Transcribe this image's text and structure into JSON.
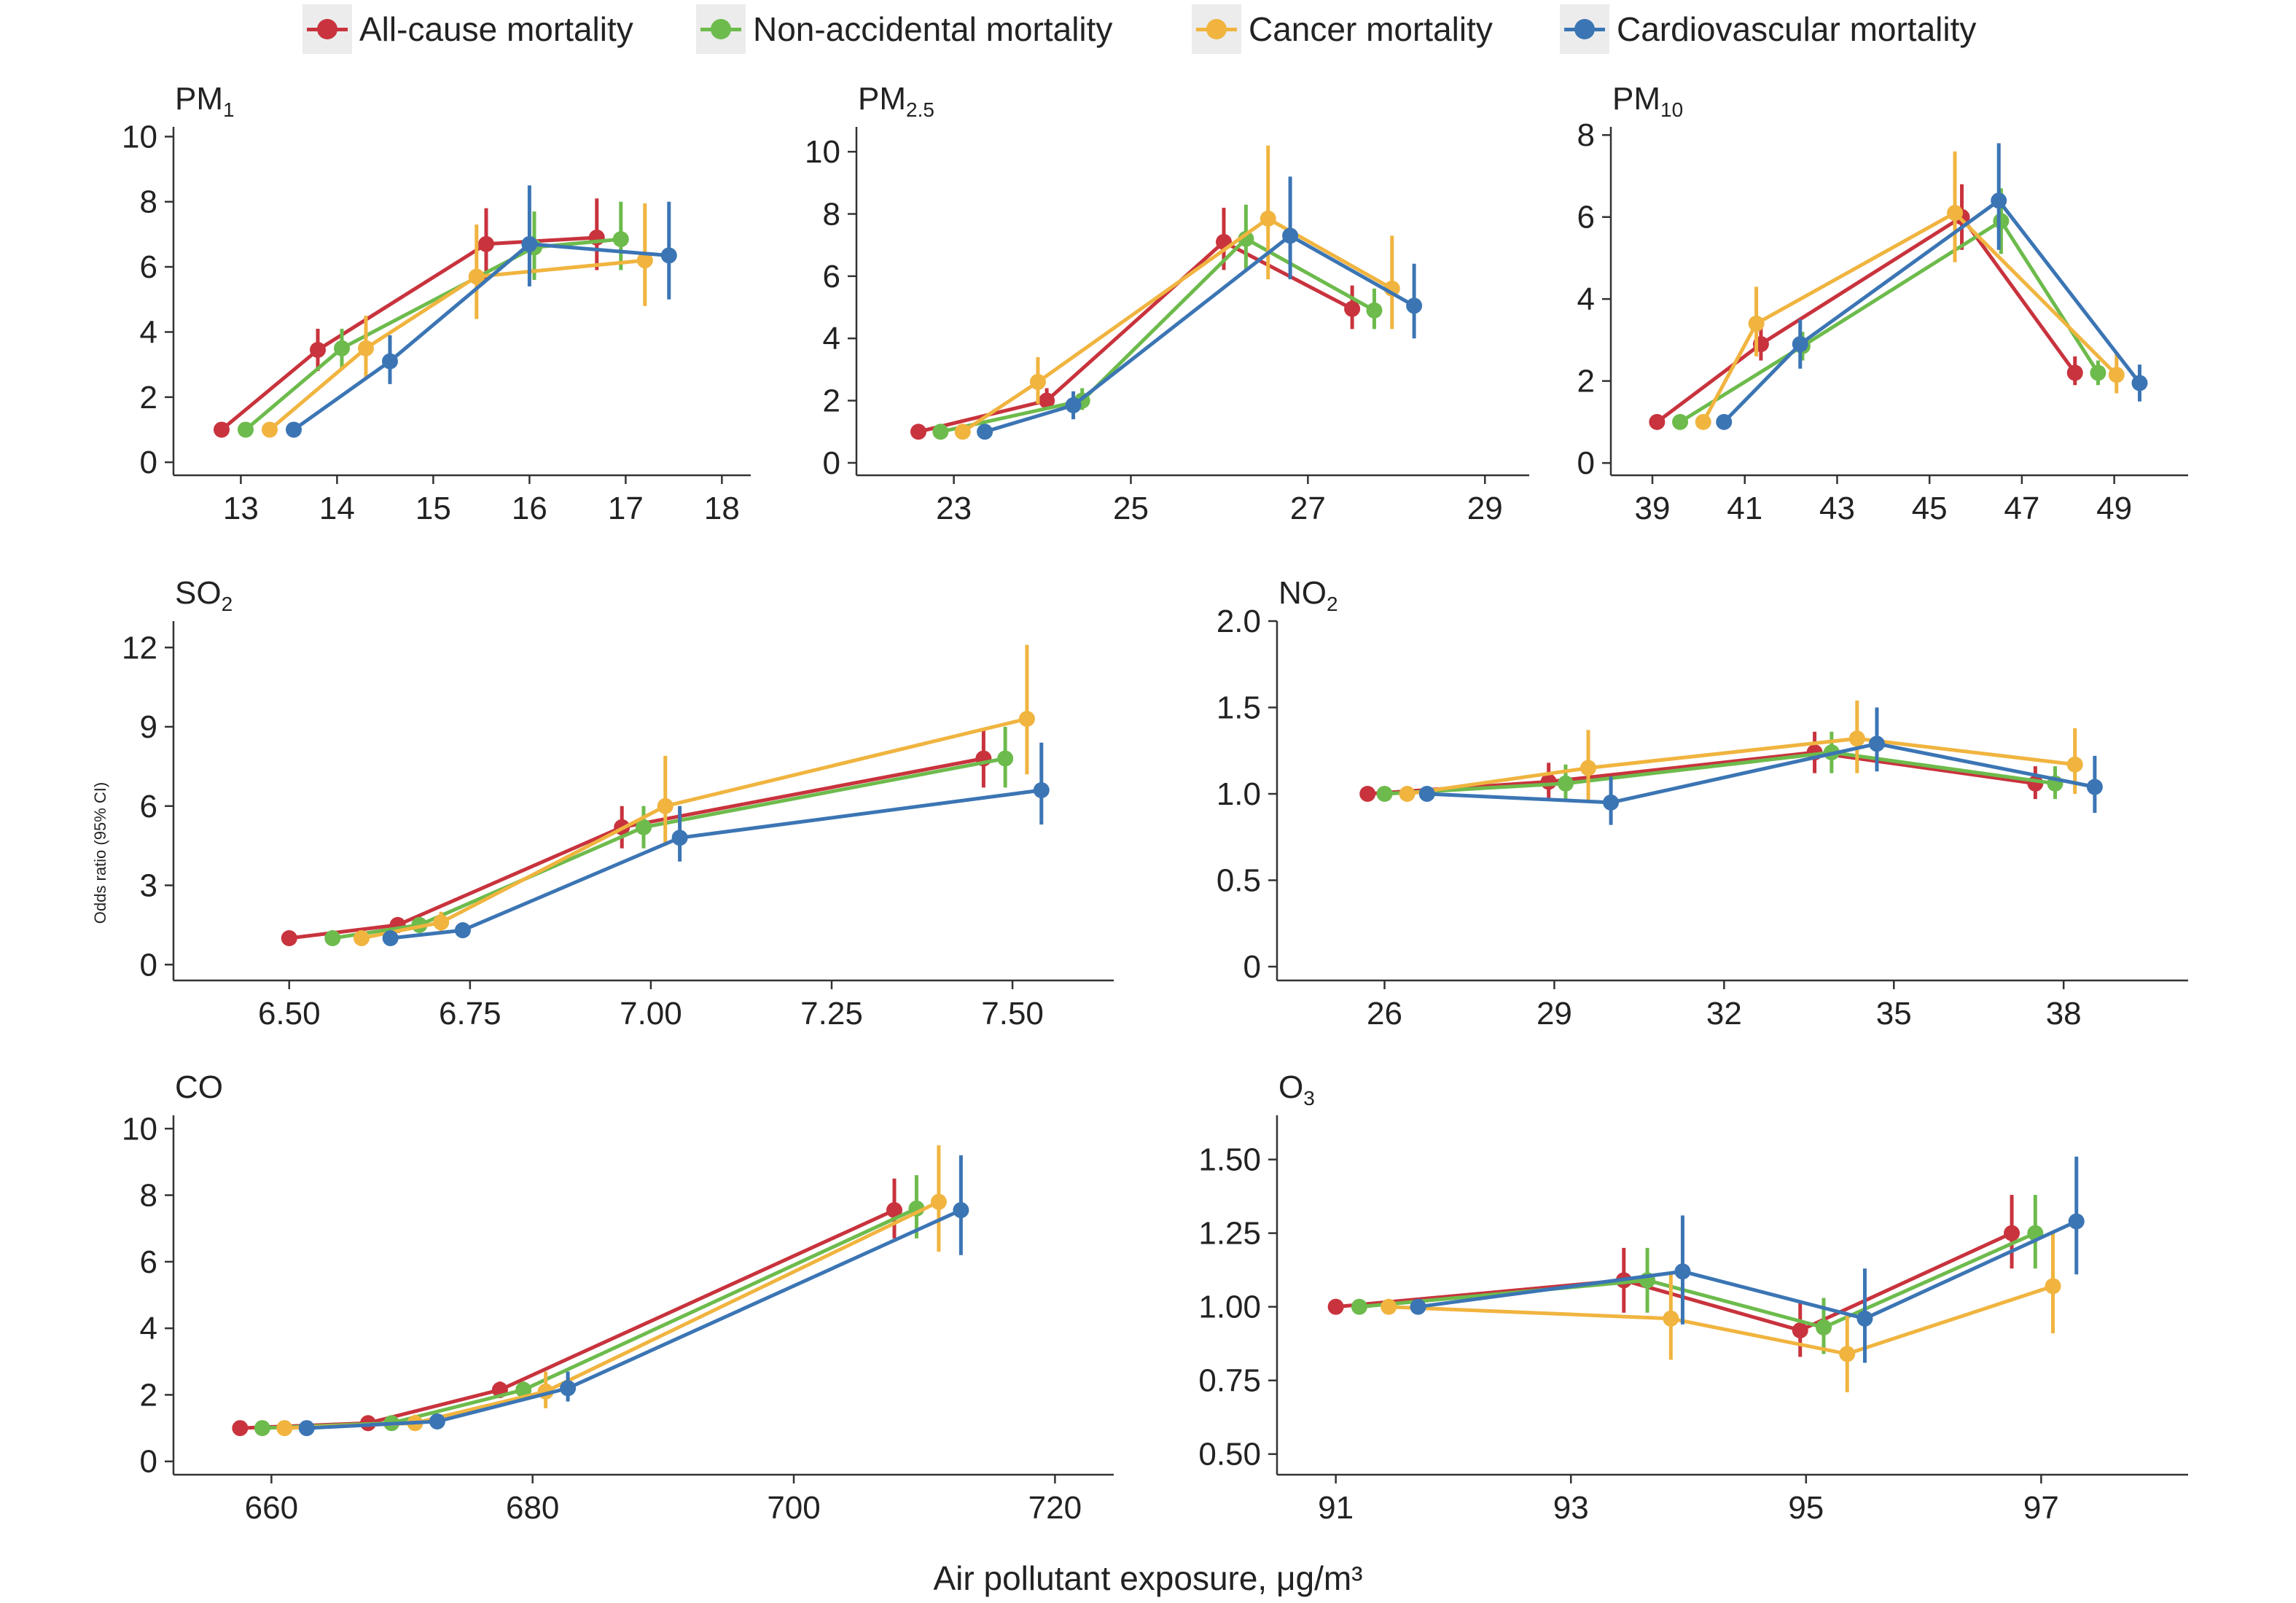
{
  "legend": [
    {
      "label": "All-cause mortality",
      "color": "#c8333d"
    },
    {
      "label": "Non-accidental mortality",
      "color": "#6dbb4c"
    },
    {
      "label": "Cancer mortality",
      "color": "#f0b43f"
    },
    {
      "label": "Cardiovascular mortality",
      "color": "#3b75b4"
    }
  ],
  "xlabel": "Air pollutant exposure, μg/m³",
  "ylabel": "Odds ratio (95% CI)",
  "chart_data": [
    {
      "type": "line",
      "title_main": "PM",
      "title_sub": "1",
      "xlim": [
        12.3,
        18.3
      ],
      "ylim": [
        -0.4,
        10.3
      ],
      "xticks": [
        13,
        14,
        15,
        16,
        17,
        18
      ],
      "xtick_labels": [
        "13",
        "14",
        "15",
        "16",
        "17",
        "18"
      ],
      "yticks": [
        0,
        2,
        4,
        6,
        8,
        10
      ],
      "ytick_labels": [
        "0",
        "2",
        "4",
        "6",
        "8",
        "10"
      ],
      "series": [
        {
          "name": "All-cause mortality",
          "x": [
            12.8,
            13.8,
            15.55,
            16.7
          ],
          "y": [
            1.0,
            3.45,
            6.7,
            6.9
          ],
          "lo": [
            1.0,
            2.8,
            5.6,
            5.9
          ],
          "hi": [
            1.0,
            4.1,
            7.8,
            8.1
          ]
        },
        {
          "name": "Non-accidental mortality",
          "x": [
            13.05,
            14.05,
            16.05,
            16.95
          ],
          "y": [
            1.0,
            3.5,
            6.6,
            6.85
          ],
          "lo": [
            1.0,
            2.9,
            5.6,
            5.9
          ],
          "hi": [
            1.0,
            4.1,
            7.7,
            8.0
          ]
        },
        {
          "name": "Cancer mortality",
          "x": [
            13.3,
            14.3,
            15.45,
            17.2
          ],
          "y": [
            1.0,
            3.5,
            5.7,
            6.2
          ],
          "lo": [
            1.0,
            2.6,
            4.4,
            4.8
          ],
          "hi": [
            1.0,
            4.5,
            7.3,
            7.95
          ]
        },
        {
          "name": "Cardiovascular mortality",
          "x": [
            13.55,
            14.55,
            16.0,
            17.45
          ],
          "y": [
            1.0,
            3.1,
            6.7,
            6.35
          ],
          "lo": [
            1.0,
            2.4,
            5.4,
            5.0
          ],
          "hi": [
            1.0,
            3.9,
            8.5,
            8.0
          ]
        }
      ]
    },
    {
      "type": "line",
      "title_main": "PM",
      "title_sub": "2.5",
      "xlim": [
        21.9,
        29.5
      ],
      "ylim": [
        -0.4,
        10.8
      ],
      "xticks": [
        23,
        25,
        27,
        29
      ],
      "xtick_labels": [
        "23",
        "25",
        "27",
        "29"
      ],
      "yticks": [
        0,
        2,
        4,
        6,
        8,
        10
      ],
      "ytick_labels": [
        "0",
        "2",
        "4",
        "6",
        "8",
        "10"
      ],
      "series": [
        {
          "name": "All-cause mortality",
          "x": [
            22.6,
            24.05,
            26.05,
            27.5
          ],
          "y": [
            1.0,
            2.0,
            7.1,
            4.95
          ],
          "lo": [
            1.0,
            1.7,
            6.2,
            4.3
          ],
          "hi": [
            1.0,
            2.4,
            8.2,
            5.7
          ]
        },
        {
          "name": "Non-accidental mortality",
          "x": [
            22.85,
            24.45,
            26.3,
            27.75
          ],
          "y": [
            1.0,
            2.0,
            7.2,
            4.9
          ],
          "lo": [
            1.0,
            1.7,
            6.2,
            4.3
          ],
          "hi": [
            1.0,
            2.4,
            8.3,
            5.6
          ]
        },
        {
          "name": "Cancer mortality",
          "x": [
            23.1,
            23.95,
            26.55,
            27.95
          ],
          "y": [
            1.0,
            2.6,
            7.85,
            5.6
          ],
          "lo": [
            1.0,
            1.9,
            5.9,
            4.3
          ],
          "hi": [
            1.0,
            3.4,
            10.2,
            7.3
          ]
        },
        {
          "name": "Cardiovascular mortality",
          "x": [
            23.35,
            24.35,
            26.8,
            28.2
          ],
          "y": [
            1.0,
            1.85,
            7.3,
            5.05
          ],
          "lo": [
            1.0,
            1.4,
            5.9,
            4.0
          ],
          "hi": [
            1.0,
            2.3,
            9.2,
            6.4
          ]
        }
      ]
    },
    {
      "type": "line",
      "title_main": "PM",
      "title_sub": "10",
      "xlim": [
        38.1,
        50.6
      ],
      "ylim": [
        -0.3,
        8.2
      ],
      "xticks": [
        39,
        41,
        43,
        45,
        47,
        49
      ],
      "xtick_labels": [
        "39",
        "41",
        "43",
        "45",
        "47",
        "49"
      ],
      "yticks": [
        0,
        2,
        4,
        6,
        8
      ],
      "ytick_labels": [
        "0",
        "2",
        "4",
        "6",
        "8"
      ],
      "series": [
        {
          "name": "All-cause mortality",
          "x": [
            39.1,
            41.35,
            45.7,
            48.15
          ],
          "y": [
            1.0,
            2.9,
            6.0,
            2.2
          ],
          "lo": [
            1.0,
            2.5,
            5.2,
            1.9
          ],
          "hi": [
            1.0,
            3.3,
            6.8,
            2.6
          ]
        },
        {
          "name": "Non-accidental mortality",
          "x": [
            39.6,
            42.25,
            46.55,
            48.65
          ],
          "y": [
            1.0,
            2.85,
            5.9,
            2.2
          ],
          "lo": [
            1.0,
            2.5,
            5.1,
            1.9
          ],
          "hi": [
            1.0,
            3.2,
            6.7,
            2.5
          ]
        },
        {
          "name": "Cancer mortality",
          "x": [
            40.1,
            41.25,
            45.55,
            49.05
          ],
          "y": [
            1.0,
            3.4,
            6.1,
            2.15
          ],
          "lo": [
            1.0,
            2.6,
            4.9,
            1.7
          ],
          "hi": [
            1.0,
            4.3,
            7.6,
            2.7
          ]
        },
        {
          "name": "Cardiovascular mortality",
          "x": [
            40.55,
            42.2,
            46.5,
            49.55
          ],
          "y": [
            1.0,
            2.9,
            6.4,
            1.95
          ],
          "lo": [
            1.0,
            2.3,
            5.2,
            1.5
          ],
          "hi": [
            1.0,
            3.5,
            7.8,
            2.4
          ]
        }
      ]
    },
    {
      "type": "line",
      "title_main": "SO",
      "title_sub": "2",
      "xlim": [
        6.34,
        7.64
      ],
      "ylim": [
        -0.6,
        13.0
      ],
      "xticks": [
        6.5,
        6.75,
        7.0,
        7.25,
        7.5
      ],
      "xtick_labels": [
        "6.50",
        "6.75",
        "7.00",
        "7.25",
        "7.50"
      ],
      "yticks": [
        0,
        3,
        6,
        9,
        12
      ],
      "ytick_labels": [
        "0",
        "3",
        "6",
        "9",
        "12"
      ],
      "series": [
        {
          "name": "All-cause mortality",
          "x": [
            6.5,
            6.65,
            6.96,
            7.46
          ],
          "y": [
            1.0,
            1.5,
            5.2,
            7.8
          ],
          "lo": [
            1.0,
            1.2,
            4.4,
            6.7
          ],
          "hi": [
            1.0,
            1.8,
            6.0,
            8.9
          ]
        },
        {
          "name": "Non-accidental mortality",
          "x": [
            6.56,
            6.68,
            6.99,
            7.49
          ],
          "y": [
            1.0,
            1.5,
            5.2,
            7.8
          ],
          "lo": [
            1.0,
            1.2,
            4.4,
            6.7
          ],
          "hi": [
            1.0,
            1.8,
            6.0,
            9.0
          ]
        },
        {
          "name": "Cancer mortality",
          "x": [
            6.6,
            6.71,
            7.02,
            7.52
          ],
          "y": [
            1.0,
            1.6,
            6.0,
            9.3
          ],
          "lo": [
            1.0,
            1.2,
            4.5,
            7.2
          ],
          "hi": [
            1.0,
            2.0,
            7.9,
            12.1
          ]
        },
        {
          "name": "Cardiovascular mortality",
          "x": [
            6.64,
            6.74,
            7.04,
            7.54
          ],
          "y": [
            1.0,
            1.3,
            4.8,
            6.6
          ],
          "lo": [
            1.0,
            1.1,
            3.9,
            5.3
          ],
          "hi": [
            1.0,
            1.6,
            6.0,
            8.4
          ]
        }
      ]
    },
    {
      "type": "line",
      "title_main": "NO",
      "title_sub": "2",
      "xlim": [
        24.1,
        40.2
      ],
      "ylim": [
        -0.08,
        2.0
      ],
      "xticks": [
        26,
        29,
        32,
        35,
        38
      ],
      "xtick_labels": [
        "26",
        "29",
        "32",
        "35",
        "38"
      ],
      "yticks": [
        0,
        0.5,
        1.0,
        1.5,
        2.0
      ],
      "ytick_labels": [
        "0",
        "0.5",
        "1.0",
        "1.5",
        "2.0"
      ],
      "series": [
        {
          "name": "All-cause mortality",
          "x": [
            25.7,
            28.9,
            33.6,
            37.5
          ],
          "y": [
            1.0,
            1.07,
            1.24,
            1.06
          ],
          "lo": [
            1.0,
            0.97,
            1.12,
            0.97
          ],
          "hi": [
            1.0,
            1.18,
            1.36,
            1.16
          ]
        },
        {
          "name": "Non-accidental mortality",
          "x": [
            26.0,
            29.2,
            33.9,
            37.85
          ],
          "y": [
            1.0,
            1.06,
            1.24,
            1.06
          ],
          "lo": [
            1.0,
            0.96,
            1.12,
            0.97
          ],
          "hi": [
            1.0,
            1.17,
            1.36,
            1.16
          ]
        },
        {
          "name": "Cancer mortality",
          "x": [
            26.4,
            29.6,
            34.35,
            38.2
          ],
          "y": [
            1.0,
            1.15,
            1.32,
            1.17
          ],
          "lo": [
            1.0,
            0.96,
            1.12,
            1.0
          ],
          "hi": [
            1.0,
            1.37,
            1.54,
            1.38
          ]
        },
        {
          "name": "Cardiovascular mortality",
          "x": [
            26.75,
            30.0,
            34.7,
            38.55
          ],
          "y": [
            1.0,
            0.95,
            1.29,
            1.04
          ],
          "lo": [
            1.0,
            0.82,
            1.13,
            0.89
          ],
          "hi": [
            1.0,
            1.1,
            1.5,
            1.22
          ]
        }
      ]
    },
    {
      "type": "line",
      "title_main": "CO",
      "title_sub": "",
      "xlim": [
        652.5,
        724.5
      ],
      "ylim": [
        -0.4,
        10.4
      ],
      "xticks": [
        660,
        680,
        700,
        720
      ],
      "xtick_labels": [
        "660",
        "680",
        "700",
        "720"
      ],
      "yticks": [
        0,
        2,
        4,
        6,
        8,
        10
      ],
      "ytick_labels": [
        "0",
        "2",
        "4",
        "6",
        "8",
        "10"
      ],
      "series": [
        {
          "name": "All-cause mortality",
          "x": [
            657.6,
            667.4,
            677.5,
            707.7
          ],
          "y": [
            1.0,
            1.15,
            2.15,
            7.55
          ],
          "lo": [
            1.0,
            1.0,
            1.9,
            6.7
          ],
          "hi": [
            1.0,
            1.3,
            2.4,
            8.5
          ]
        },
        {
          "name": "Non-accidental mortality",
          "x": [
            659.3,
            669.2,
            679.3,
            709.4
          ],
          "y": [
            1.0,
            1.15,
            2.15,
            7.6
          ],
          "lo": [
            1.0,
            1.0,
            1.9,
            6.7
          ],
          "hi": [
            1.0,
            1.3,
            2.4,
            8.6
          ]
        },
        {
          "name": "Cancer mortality",
          "x": [
            661.0,
            671.0,
            681.0,
            711.1
          ],
          "y": [
            1.0,
            1.15,
            2.1,
            7.8
          ],
          "lo": [
            1.0,
            0.95,
            1.6,
            6.3
          ],
          "hi": [
            1.0,
            1.4,
            2.7,
            9.5
          ]
        },
        {
          "name": "Cardiovascular mortality",
          "x": [
            662.7,
            672.7,
            682.7,
            712.8
          ],
          "y": [
            1.0,
            1.2,
            2.2,
            7.55
          ],
          "lo": [
            1.0,
            1.0,
            1.8,
            6.2
          ],
          "hi": [
            1.0,
            1.4,
            2.7,
            9.2
          ]
        }
      ]
    },
    {
      "type": "line",
      "title_main": "O",
      "title_sub": "3",
      "xlim": [
        90.5,
        98.25
      ],
      "ylim": [
        0.43,
        1.65
      ],
      "xticks": [
        91,
        93,
        95,
        97
      ],
      "xtick_labels": [
        "91",
        "93",
        "95",
        "97"
      ],
      "yticks": [
        0.5,
        0.75,
        1.0,
        1.25,
        1.5
      ],
      "ytick_labels": [
        "0.50",
        "0.75",
        "1.00",
        "1.25",
        "1.50"
      ],
      "series": [
        {
          "name": "All-cause mortality",
          "x": [
            91.0,
            93.45,
            94.95,
            96.75
          ],
          "y": [
            1.0,
            1.09,
            0.92,
            1.25
          ],
          "lo": [
            1.0,
            0.98,
            0.83,
            1.13
          ],
          "hi": [
            1.0,
            1.2,
            1.02,
            1.38
          ]
        },
        {
          "name": "Non-accidental mortality",
          "x": [
            91.2,
            93.65,
            95.15,
            96.95
          ],
          "y": [
            1.0,
            1.09,
            0.93,
            1.25
          ],
          "lo": [
            1.0,
            0.98,
            0.84,
            1.13
          ],
          "hi": [
            1.0,
            1.2,
            1.03,
            1.38
          ]
        },
        {
          "name": "Cancer mortality",
          "x": [
            91.45,
            93.85,
            95.35,
            97.1
          ],
          "y": [
            1.0,
            0.96,
            0.84,
            1.07
          ],
          "lo": [
            1.0,
            0.82,
            0.71,
            0.91
          ],
          "hi": [
            1.0,
            1.12,
            0.97,
            1.25
          ]
        },
        {
          "name": "Cardiovascular mortality",
          "x": [
            91.7,
            93.95,
            95.5,
            97.3
          ],
          "y": [
            1.0,
            1.12,
            0.96,
            1.29
          ],
          "lo": [
            1.0,
            0.94,
            0.81,
            1.11
          ],
          "hi": [
            1.0,
            1.31,
            1.13,
            1.51
          ]
        }
      ]
    }
  ]
}
